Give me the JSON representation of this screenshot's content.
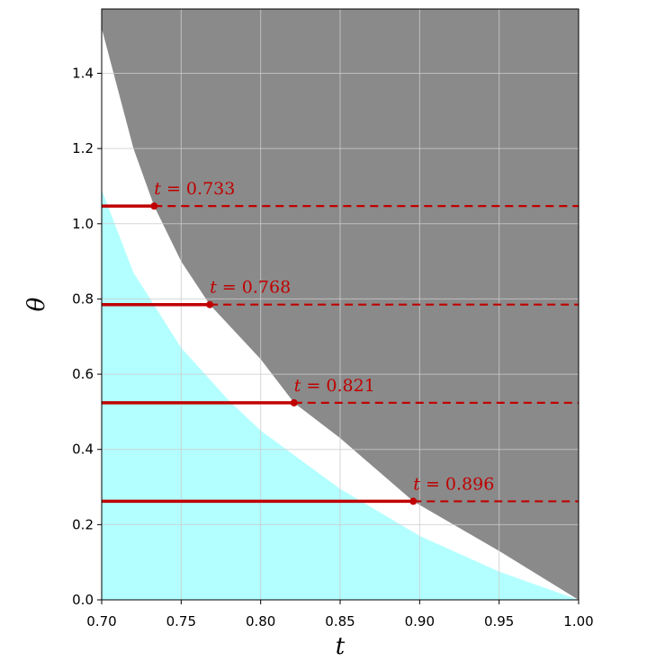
{
  "chart_data": {
    "type": "area",
    "title": "",
    "xlabel": "t",
    "ylabel": "θ",
    "xlim": [
      0.7,
      1.0
    ],
    "ylim": [
      0.0,
      1.571
    ],
    "grid": true,
    "x_ticks": [
      "0.70",
      "0.75",
      "0.80",
      "0.85",
      "0.90",
      "0.95",
      "1.00"
    ],
    "y_ticks": [
      "0.0",
      "0.2",
      "0.4",
      "0.6",
      "0.8",
      "1.0",
      "1.2",
      "1.4"
    ],
    "regions": [
      {
        "name": "",
        "color": "#8a8a8a",
        "note_type": "region above upper boundary curve theta(t)"
      },
      {
        "name": "",
        "color": "#b3ffff",
        "note_type": "region below lower boundary curve"
      },
      {
        "name": "",
        "color": "#ffffff",
        "note_type": "band between boundaries"
      }
    ],
    "upper_boundary": {
      "t": [
        0.7,
        0.72,
        0.733,
        0.75,
        0.768,
        0.8,
        0.821,
        0.85,
        0.896,
        0.95,
        1.0
      ],
      "theta": [
        1.52,
        1.2,
        1.047,
        0.9,
        0.785,
        0.64,
        0.524,
        0.43,
        0.262,
        0.13,
        0.0
      ]
    },
    "lower_boundary": {
      "t": [
        0.7,
        0.72,
        0.75,
        0.78,
        0.8,
        0.85,
        0.9,
        0.95,
        1.0
      ],
      "theta": [
        1.09,
        0.87,
        0.67,
        0.53,
        0.45,
        0.295,
        0.17,
        0.075,
        0.0
      ]
    },
    "markers": [
      {
        "theta": 1.047,
        "t": 0.733,
        "label_var": "t",
        "label_value": "= 0.733"
      },
      {
        "theta": 0.785,
        "t": 0.768,
        "label_var": "t",
        "label_value": "= 0.768"
      },
      {
        "theta": 0.524,
        "t": 0.821,
        "label_var": "t",
        "label_value": "= 0.821"
      },
      {
        "theta": 0.262,
        "t": 0.896,
        "label_var": "t",
        "label_value": "= 0.896"
      }
    ],
    "marker_color": "#c00000",
    "grid_color": "#cccccc"
  }
}
